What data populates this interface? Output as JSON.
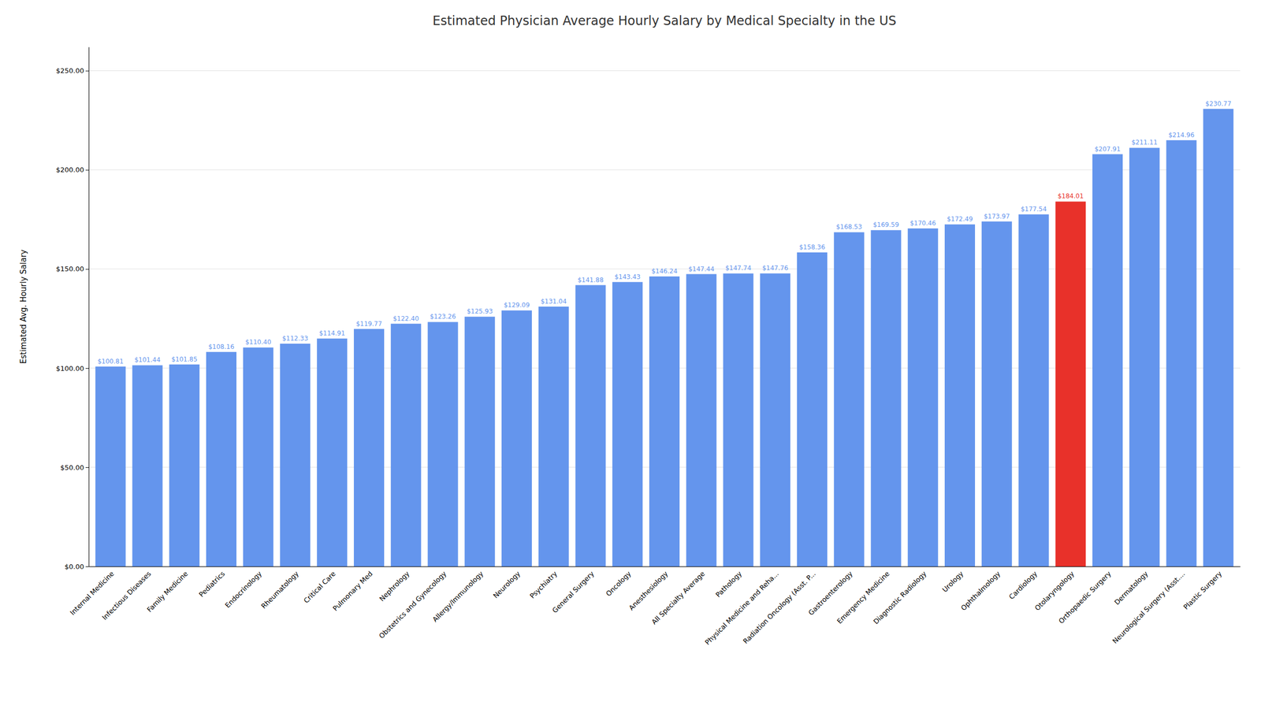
{
  "chart_data": {
    "type": "bar",
    "title": "Estimated Physician Average Hourly Salary by Medical Specialty in the US",
    "ylabel": "Estimated Avg. Hourly Salary",
    "categories": [
      "Internal Medicine",
      "Infectious Diseases",
      "Family Medicine",
      "Pediatrics",
      "Endocrinology",
      "Rheumatology",
      "Critical Care",
      "Pulmonary Med",
      "Nephrology",
      "Obstetrics and Gynecology",
      "Allergy/Immunology",
      "Neurology",
      "Psychiatry",
      "General Surgery",
      "Oncology",
      "Anesthesiology",
      "All Specialty Average",
      "Pathology",
      "Physical Medicine and Reha...",
      "Radiation Oncology (Asst. P...",
      "Gastroenterology",
      "Emergency Medicine",
      "Diagnostic Radiology",
      "Urology",
      "Ophthalmology",
      "Cardiology",
      "Otolaryngology",
      "Orthopaedic Surgery",
      "Dermatology",
      "Neurological Surgery (Asst....",
      "Plastic Surgery"
    ],
    "values": [
      100.81,
      101.44,
      101.85,
      108.16,
      110.4,
      112.33,
      114.91,
      119.77,
      122.4,
      123.26,
      125.93,
      129.09,
      131.04,
      141.88,
      143.43,
      146.24,
      147.44,
      147.74,
      147.76,
      158.36,
      168.53,
      169.59,
      170.46,
      172.49,
      173.97,
      177.54,
      184.01,
      207.91,
      211.11,
      214.96,
      230.77
    ],
    "value_labels": [
      "$100.81",
      "$101.44",
      "$101.85",
      "$108.16",
      "$110.40",
      "$112.33",
      "$114.91",
      "$119.77",
      "$122.40",
      "$123.26",
      "$125.93",
      "$129.09",
      "$131.04",
      "$141.88",
      "$143.43",
      "$146.24",
      "$147.44",
      "$147.74",
      "$147.76",
      "$158.36",
      "$168.53",
      "$169.59",
      "$170.46",
      "$172.49",
      "$173.97",
      "$177.54",
      "$184.01",
      "$207.91",
      "$211.11",
      "$214.96",
      "$230.77"
    ],
    "colors": [
      "#6495ED",
      "#6495ED",
      "#6495ED",
      "#6495ED",
      "#6495ED",
      "#6495ED",
      "#6495ED",
      "#6495ED",
      "#6495ED",
      "#6495ED",
      "#6495ED",
      "#6495ED",
      "#6495ED",
      "#6495ED",
      "#6495ED",
      "#6495ED",
      "#6495ED",
      "#6495ED",
      "#6495ED",
      "#6495ED",
      "#6495ED",
      "#6495ED",
      "#6495ED",
      "#6495ED",
      "#6495ED",
      "#6495ED",
      "#E8312A",
      "#6495ED",
      "#6495ED",
      "#6495ED",
      "#6495ED"
    ],
    "ylim": [
      0,
      262
    ],
    "yticks": [
      {
        "value": 0,
        "label": "$0.00"
      },
      {
        "value": 50,
        "label": "$50.00"
      },
      {
        "value": 100,
        "label": "$100.00"
      },
      {
        "value": 150,
        "label": "$150.00"
      },
      {
        "value": 200,
        "label": "$200.00"
      },
      {
        "value": 250,
        "label": "$250.00"
      }
    ],
    "grid": true,
    "data_labels": true
  }
}
